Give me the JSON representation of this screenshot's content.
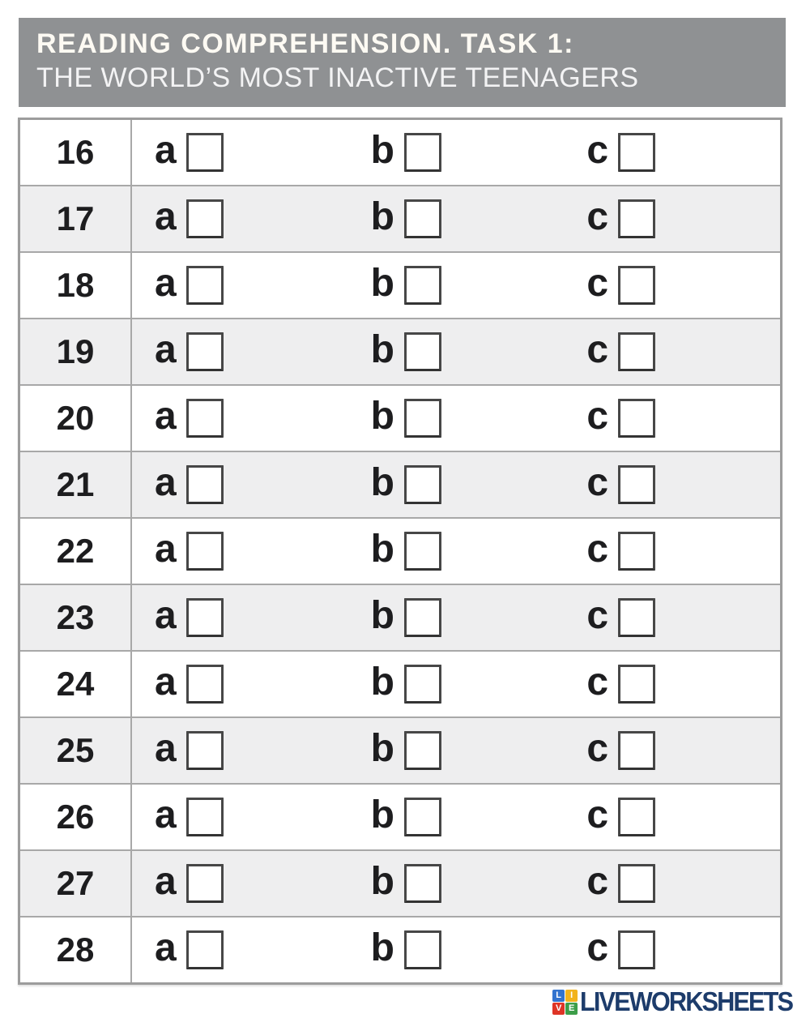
{
  "header": {
    "title": "READING COMPREHENSION. TASK 1:",
    "subtitle": "THE WORLD’S MOST INACTIVE TEENAGERS",
    "bg_color": "#8f9193",
    "text_color": "#fdfaf3"
  },
  "answer_table": {
    "option_labels": [
      "a",
      "b",
      "c"
    ],
    "rows": [
      {
        "number": "16"
      },
      {
        "number": "17"
      },
      {
        "number": "18"
      },
      {
        "number": "19"
      },
      {
        "number": "20"
      },
      {
        "number": "21"
      },
      {
        "number": "22"
      },
      {
        "number": "23"
      },
      {
        "number": "24"
      },
      {
        "number": "25"
      },
      {
        "number": "26"
      },
      {
        "number": "27"
      },
      {
        "number": "28"
      }
    ],
    "checkbox_state": "unchecked",
    "row_alt_bg": "#eeeeef",
    "row_bg": "#ffffff",
    "border_color": "#a8a8a8"
  },
  "branding": {
    "logo_text": "LIVEWORKSHEETS",
    "logo_text_color": "#1d3c6b",
    "logo_tiles": [
      {
        "letter": "L",
        "color": "#3273cf"
      },
      {
        "letter": "I",
        "color": "#f2b31c"
      },
      {
        "letter": "V",
        "color": "#de3426"
      },
      {
        "letter": "E",
        "color": "#3d9e49"
      }
    ]
  }
}
